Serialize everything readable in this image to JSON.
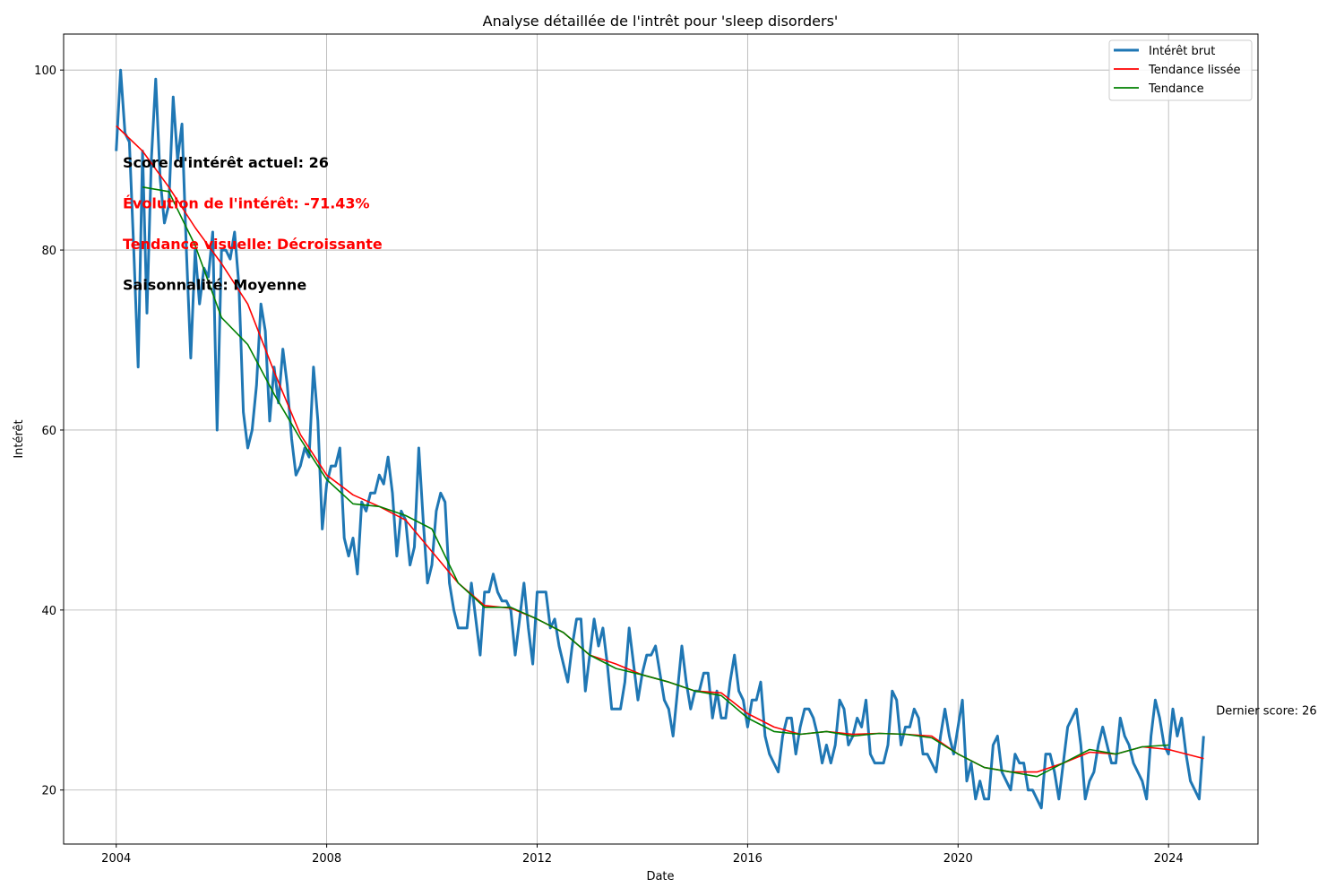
{
  "chart_data": {
    "type": "line",
    "title": "Analyse détaillée de l'intrêt pour 'sleep disorders'",
    "xlabel": "Date",
    "ylabel": "Intérêt",
    "xlim": [
      2003.0,
      2025.7
    ],
    "ylim": [
      14,
      104
    ],
    "x_ticks": [
      2004,
      2008,
      2012,
      2016,
      2020,
      2024
    ],
    "y_ticks": [
      20,
      40,
      60,
      80,
      100
    ],
    "grid": true,
    "legend_position": "top-right",
    "colors": {
      "raw": "#1f77b4",
      "smooth": "#ff0000",
      "trend": "#008000"
    },
    "series": [
      {
        "name": "Intérêt brut",
        "start": 2004.0,
        "step": 0.08333,
        "values": [
          91,
          100,
          93,
          92,
          80,
          67,
          91,
          73,
          90,
          99,
          88,
          83,
          85,
          97,
          90,
          94,
          80,
          68,
          80,
          74,
          78,
          77,
          82,
          60,
          80,
          80,
          79,
          82,
          76,
          62,
          58,
          60,
          65,
          74,
          71,
          61,
          67,
          63,
          69,
          65,
          59,
          55,
          56,
          58,
          57,
          67,
          61,
          49,
          54,
          56,
          56,
          58,
          48,
          46,
          48,
          44,
          52,
          51,
          53,
          53,
          55,
          54,
          57,
          53,
          46,
          51,
          50,
          45,
          47,
          58,
          50,
          43,
          45,
          51,
          53,
          52,
          43,
          40,
          38,
          38,
          38,
          43,
          39,
          35,
          42,
          42,
          44,
          42,
          41,
          41,
          40,
          35,
          39,
          43,
          38,
          34,
          42,
          42,
          42,
          38,
          39,
          36,
          34,
          32,
          36,
          39,
          39,
          31,
          35,
          39,
          36,
          38,
          34,
          29,
          29,
          29,
          32,
          38,
          34,
          30,
          33,
          35,
          35,
          36,
          33,
          30,
          29,
          26,
          31,
          36,
          32,
          29,
          31,
          31,
          33,
          33,
          28,
          31,
          28,
          28,
          32,
          35,
          31,
          30,
          27,
          30,
          30,
          32,
          26,
          24,
          23,
          22,
          26,
          28,
          28,
          24,
          27,
          29,
          29,
          28,
          26,
          23,
          25,
          23,
          25,
          30,
          29,
          25,
          26,
          28,
          27,
          30,
          24,
          23,
          23,
          23,
          25,
          31,
          30,
          25,
          27,
          27,
          29,
          28,
          24,
          24,
          23,
          22,
          26,
          29,
          26,
          24,
          27,
          30,
          21,
          23,
          19,
          21,
          19,
          19,
          25,
          26,
          22,
          21,
          20,
          24,
          23,
          23,
          20,
          20,
          19,
          18,
          24,
          24,
          22,
          19,
          23,
          27,
          28,
          29,
          25,
          19,
          21,
          22,
          25,
          27,
          25,
          23,
          23,
          28,
          26,
          25,
          23,
          22,
          21,
          19,
          26,
          30,
          28,
          25,
          24,
          29,
          26,
          28,
          24,
          21,
          20,
          19,
          26
        ]
      },
      {
        "name": "Tendance lissée",
        "points": [
          [
            2004.0,
            93.8
          ],
          [
            2004.5,
            91.0
          ],
          [
            2005.0,
            87.0
          ],
          [
            2005.5,
            82.5
          ],
          [
            2006.0,
            78.5
          ],
          [
            2006.5,
            74.0
          ],
          [
            2007.0,
            66.5
          ],
          [
            2007.5,
            59.5
          ],
          [
            2008.0,
            55.0
          ],
          [
            2008.5,
            52.8
          ],
          [
            2009.0,
            51.5
          ],
          [
            2009.5,
            50.0
          ],
          [
            2010.0,
            46.5
          ],
          [
            2010.5,
            43.0
          ],
          [
            2011.0,
            40.5
          ],
          [
            2011.5,
            40.2
          ],
          [
            2012.0,
            39.0
          ],
          [
            2012.5,
            37.5
          ],
          [
            2013.0,
            35.0
          ],
          [
            2013.5,
            34.0
          ],
          [
            2014.0,
            32.8
          ],
          [
            2014.5,
            32.0
          ],
          [
            2015.0,
            31.0
          ],
          [
            2015.5,
            30.8
          ],
          [
            2016.0,
            28.5
          ],
          [
            2016.5,
            27.0
          ],
          [
            2017.0,
            26.2
          ],
          [
            2017.5,
            26.5
          ],
          [
            2018.0,
            26.2
          ],
          [
            2018.5,
            26.3
          ],
          [
            2019.0,
            26.2
          ],
          [
            2019.5,
            26.0
          ],
          [
            2020.0,
            24.0
          ],
          [
            2020.5,
            22.5
          ],
          [
            2021.0,
            22.0
          ],
          [
            2021.5,
            22.0
          ],
          [
            2022.0,
            23.0
          ],
          [
            2022.5,
            24.2
          ],
          [
            2023.0,
            24.0
          ],
          [
            2023.5,
            24.8
          ],
          [
            2024.0,
            24.5
          ],
          [
            2024.67,
            23.5
          ]
        ]
      },
      {
        "name": "Tendance",
        "points": [
          [
            2004.5,
            87.0
          ],
          [
            2005.0,
            86.5
          ],
          [
            2005.5,
            80.5
          ],
          [
            2006.0,
            72.5
          ],
          [
            2006.5,
            69.5
          ],
          [
            2007.0,
            64.0
          ],
          [
            2007.5,
            59.0
          ],
          [
            2008.0,
            54.5
          ],
          [
            2008.5,
            51.8
          ],
          [
            2009.0,
            51.5
          ],
          [
            2009.5,
            50.5
          ],
          [
            2010.0,
            49.0
          ],
          [
            2010.5,
            43.0
          ],
          [
            2011.0,
            40.3
          ],
          [
            2011.5,
            40.3
          ],
          [
            2012.0,
            39.0
          ],
          [
            2012.5,
            37.5
          ],
          [
            2013.0,
            35.0
          ],
          [
            2013.5,
            33.5
          ],
          [
            2014.0,
            32.8
          ],
          [
            2014.5,
            32.0
          ],
          [
            2015.0,
            31.0
          ],
          [
            2015.5,
            30.5
          ],
          [
            2016.0,
            28.0
          ],
          [
            2016.5,
            26.5
          ],
          [
            2017.0,
            26.2
          ],
          [
            2017.5,
            26.5
          ],
          [
            2018.0,
            26.0
          ],
          [
            2018.5,
            26.3
          ],
          [
            2019.0,
            26.2
          ],
          [
            2019.5,
            25.8
          ],
          [
            2020.0,
            24.0
          ],
          [
            2020.5,
            22.5
          ],
          [
            2021.0,
            22.0
          ],
          [
            2021.5,
            21.5
          ],
          [
            2022.0,
            23.0
          ],
          [
            2022.5,
            24.5
          ],
          [
            2023.0,
            24.0
          ],
          [
            2023.5,
            24.8
          ],
          [
            2024.0,
            25.0
          ]
        ]
      }
    ],
    "annotations": [
      {
        "text": "Score d'intérêt actuel: 26",
        "color": "#000000"
      },
      {
        "text": "Évolution de l'intérêt: -71.43%",
        "color": "#ff0000"
      },
      {
        "text": "Tendance visuelle: Décroissante",
        "color": "#ff0000"
      },
      {
        "text": "Saisonnalité: Moyenne",
        "color": "#000000"
      }
    ],
    "last_score_label": "Dernier score: 26"
  }
}
